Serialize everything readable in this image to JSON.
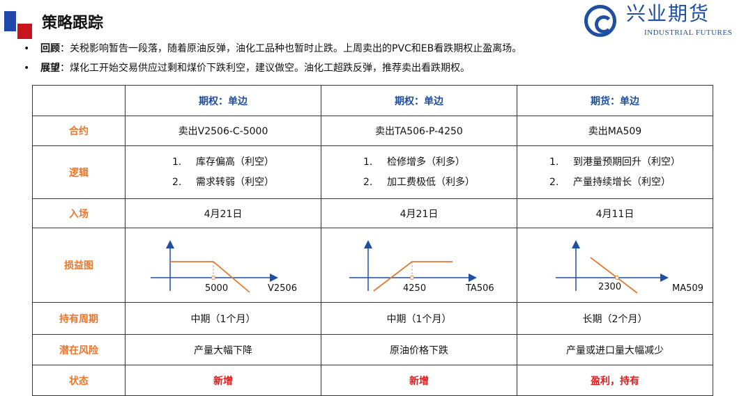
{
  "header": {
    "title": "策略跟踪",
    "logo_cn": "兴业期货",
    "logo_en": "INDUSTRIAL FUTURES"
  },
  "bullets": [
    {
      "label": "回顾",
      "text": "：关税影响暂告一段落，随着原油反弹，油化工品种也暂时止跌。上周卖出的PVC和EB看跌期权止盈离场。"
    },
    {
      "label": "展望",
      "text": "：煤化工开始交易供应过剩和煤价下跌利空，建议做空。油化工超跌反弹，推荐卖出看跌期权。"
    }
  ],
  "table": {
    "row_labels": [
      "合约",
      "逻辑",
      "入场",
      "损益图",
      "持有周期",
      "潜在风险",
      "状态"
    ],
    "columns": [
      {
        "header": "期权：单边",
        "contract": "卖出V2506-C-5000",
        "logic": [
          [
            "1.",
            "库存偏高（利空）"
          ],
          [
            "2.",
            "需求转弱（利空）"
          ]
        ],
        "entry": "4月21日",
        "chart": {
          "strike": "5000",
          "axis_label": "V2506",
          "type": "short-call"
        },
        "period": "中期（1个月）",
        "risk": "产量大幅下降",
        "status": "新增"
      },
      {
        "header": "期权：单边",
        "contract": "卖出TA506-P-4250",
        "logic": [
          [
            "1.",
            "检修增多（利多）"
          ],
          [
            "2.",
            "加工费极低（利多）"
          ]
        ],
        "entry": "4月21日",
        "chart": {
          "strike": "4250",
          "axis_label": "TA506",
          "type": "short-put"
        },
        "period": "中期（1个月）",
        "risk": "原油价格下跌",
        "status": "新增"
      },
      {
        "header": "期货：单边",
        "contract": "卖出MA509",
        "logic": [
          [
            "1.",
            "到港量预期回升（利空）"
          ],
          [
            "2.",
            "产量持续增长（利空）"
          ]
        ],
        "entry": "4月11日",
        "chart": {
          "strike": "2300",
          "axis_label": "MA509",
          "type": "short-futures"
        },
        "period": "长期（2个月）",
        "risk": "产量或进口量大幅减少",
        "status": "盈利，持有"
      }
    ]
  },
  "colors": {
    "axis": "#1f4fa0",
    "payoff": "#e8762b",
    "label": "#e8762b",
    "status": "#e01b1b"
  }
}
